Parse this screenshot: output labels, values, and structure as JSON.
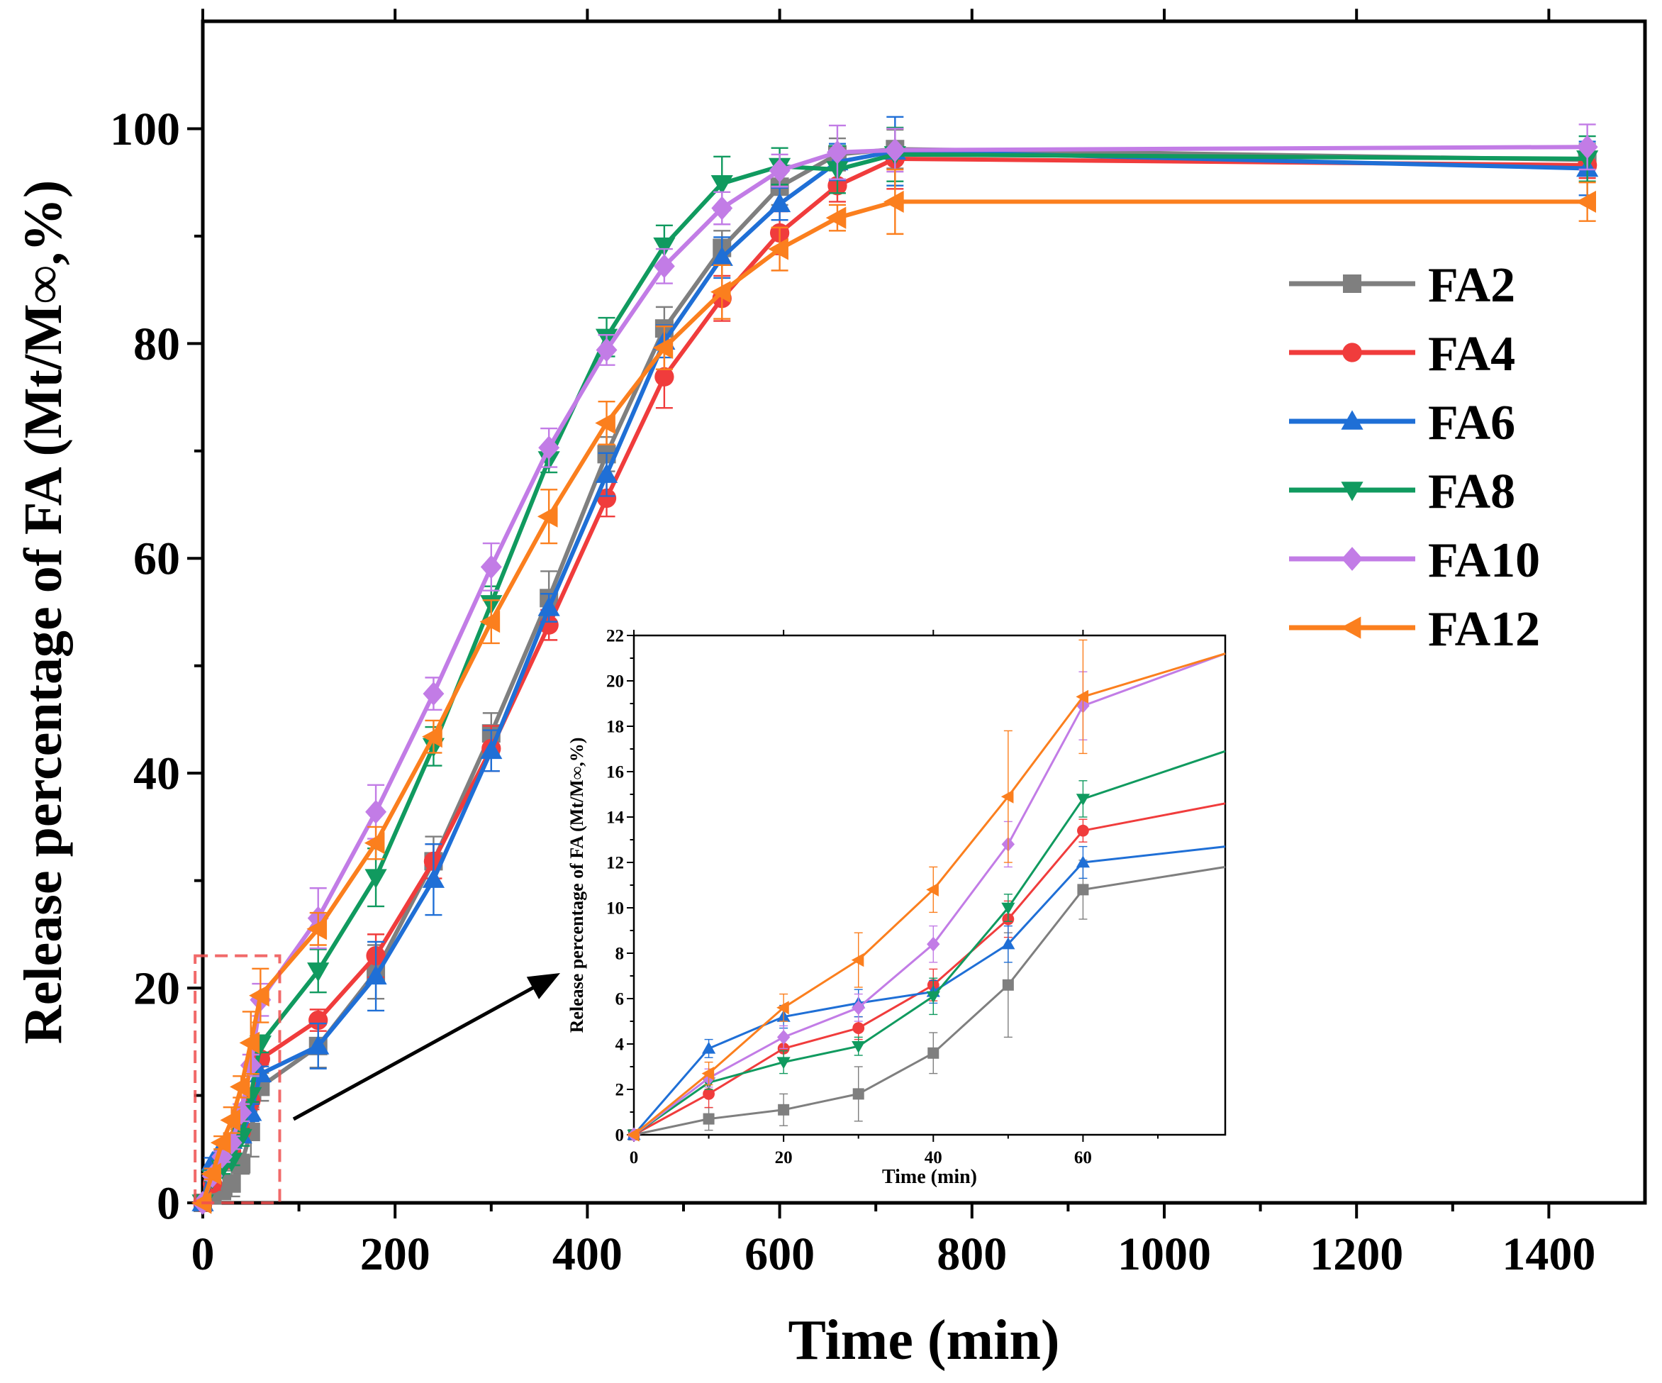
{
  "chart_data": [
    {
      "type": "line",
      "title": "",
      "xlabel": "Time (min)",
      "ylabel": "Release percentage of FA (Mt/M∞,%)",
      "xlim": [
        0,
        1500
      ],
      "ylim": [
        0,
        110
      ],
      "x_ticks": [
        0,
        200,
        400,
        600,
        800,
        1000,
        1200,
        1400
      ],
      "y_ticks": [
        0,
        20,
        40,
        60,
        80,
        100
      ],
      "x_tick_labels": [
        "0",
        "200",
        "400",
        "600",
        "800",
        "1000",
        "1200",
        "1400"
      ],
      "y_tick_labels": [
        "0",
        "20",
        "40",
        "60",
        "80",
        "100"
      ],
      "legend_position": "right",
      "series": [
        {
          "name": "FA2",
          "color": "#7f7f7f",
          "marker": "square",
          "x": [
            0,
            10,
            20,
            30,
            40,
            50,
            60,
            120,
            180,
            240,
            300,
            360,
            420,
            480,
            540,
            600,
            660,
            720,
            1440
          ],
          "y": [
            0,
            0.7,
            1.1,
            1.8,
            3.6,
            6.6,
            10.8,
            14.6,
            21.5,
            31.8,
            43.7,
            56.3,
            69.7,
            81.4,
            88.9,
            94.6,
            97.6,
            98.1,
            97.1
          ],
          "err": [
            0,
            0.5,
            0.7,
            1.2,
            0.9,
            2.3,
            1.3,
            2.0,
            2.5,
            2.3,
            1.9,
            2.5,
            1.6,
            2.0,
            1.6,
            1.7,
            1.5,
            1.8,
            1.5
          ]
        },
        {
          "name": "FA4",
          "color": "#f03c3c",
          "marker": "circle",
          "x": [
            0,
            10,
            20,
            30,
            40,
            50,
            60,
            120,
            180,
            240,
            300,
            360,
            420,
            480,
            540,
            600,
            660,
            720,
            1440
          ],
          "y": [
            0,
            1.8,
            3.8,
            4.7,
            6.6,
            9.5,
            13.4,
            17.0,
            23.0,
            31.8,
            42.3,
            53.8,
            65.6,
            76.9,
            84.2,
            90.3,
            94.7,
            97.2,
            96.6
          ],
          "err": [
            0,
            0.6,
            0.6,
            0.5,
            0.7,
            0.8,
            0.5,
            1.0,
            2.0,
            1.6,
            2.1,
            1.4,
            1.7,
            2.9,
            2.1,
            2.0,
            1.5,
            2.8,
            1.2
          ]
        },
        {
          "name": "FA6",
          "color": "#1f6fd6",
          "marker": "triangle-up",
          "x": [
            0,
            10,
            20,
            30,
            40,
            50,
            60,
            120,
            180,
            240,
            300,
            360,
            420,
            480,
            540,
            600,
            660,
            720,
            1440
          ],
          "y": [
            0,
            3.8,
            5.2,
            5.8,
            6.3,
            8.4,
            12.0,
            14.6,
            21.1,
            30.1,
            42.1,
            55.4,
            67.8,
            80.2,
            88.0,
            93.0,
            96.9,
            97.9,
            96.3
          ],
          "err": [
            0,
            0.4,
            0.5,
            0.6,
            0.5,
            0.8,
            0.7,
            2.1,
            3.2,
            3.3,
            1.9,
            1.3,
            2.0,
            1.5,
            1.9,
            1.5,
            1.7,
            3.2,
            2.5
          ]
        },
        {
          "name": "FA8",
          "color": "#109a5f",
          "marker": "triangle-down",
          "x": [
            0,
            10,
            20,
            30,
            40,
            50,
            60,
            120,
            180,
            240,
            300,
            360,
            420,
            480,
            540,
            600,
            660,
            720,
            1440
          ],
          "y": [
            0,
            2.3,
            3.2,
            3.9,
            6.1,
            10.0,
            14.8,
            21.6,
            30.3,
            42.5,
            55.8,
            69.2,
            80.6,
            89.1,
            94.9,
            96.5,
            96.2,
            97.6,
            97.2
          ],
          "err": [
            0,
            0.3,
            0.5,
            0.4,
            0.8,
            0.6,
            0.8,
            2.0,
            2.7,
            1.8,
            1.6,
            1.2,
            1.8,
            1.9,
            2.5,
            1.7,
            2.2,
            2.5,
            2.1
          ]
        },
        {
          "name": "FA10",
          "color": "#c27ce6",
          "marker": "diamond",
          "x": [
            0,
            10,
            20,
            30,
            40,
            50,
            60,
            120,
            180,
            240,
            300,
            360,
            420,
            480,
            540,
            600,
            660,
            720,
            1440
          ],
          "y": [
            0,
            2.5,
            4.3,
            5.6,
            8.4,
            12.8,
            18.9,
            26.5,
            36.4,
            47.4,
            59.2,
            70.3,
            79.4,
            87.2,
            92.6,
            96.1,
            97.8,
            98.0,
            98.3
          ],
          "err": [
            0,
            0.4,
            0.5,
            0.6,
            0.8,
            1.0,
            1.5,
            2.8,
            2.5,
            1.5,
            2.2,
            1.8,
            1.4,
            1.6,
            1.5,
            1.5,
            2.5,
            2.0,
            2.1
          ]
        },
        {
          "name": "FA12",
          "color": "#fb7f1e",
          "marker": "triangle-left",
          "x": [
            0,
            10,
            20,
            30,
            40,
            50,
            60,
            120,
            180,
            240,
            300,
            360,
            420,
            480,
            540,
            600,
            660,
            720,
            1440
          ],
          "y": [
            0,
            2.7,
            5.6,
            7.7,
            10.8,
            14.9,
            19.3,
            25.5,
            33.5,
            43.4,
            54.1,
            63.9,
            72.6,
            79.6,
            84.8,
            88.8,
            91.7,
            93.2,
            93.2
          ],
          "err": [
            0,
            0.5,
            0.6,
            1.2,
            1.0,
            2.9,
            2.5,
            1.5,
            1.5,
            1.5,
            2.0,
            2.5,
            2.0,
            2.0,
            2.5,
            2.0,
            1.2,
            3.0,
            1.8
          ]
        }
      ]
    },
    {
      "type": "line",
      "title": "",
      "xlabel": "Time (min)",
      "ylabel": "Release percentage of FA (Mt/M∞,%)",
      "xlim": [
        0,
        79
      ],
      "ylim": [
        0,
        22
      ],
      "x_ticks": [
        0,
        20,
        40,
        60
      ],
      "y_ticks": [
        0,
        2,
        4,
        6,
        8,
        10,
        12,
        14,
        16,
        18,
        20,
        22
      ],
      "x_tick_labels": [
        "0",
        "20",
        "40",
        "60"
      ],
      "y_tick_labels": [
        "0",
        "2",
        "4",
        "6",
        "8",
        "10",
        "12",
        "14",
        "16",
        "18",
        "20",
        "22"
      ],
      "note": "inset zoom of the region t = 0-80 min, release 0-22%",
      "series": [
        {
          "name": "FA2",
          "color": "#7f7f7f",
          "marker": "square",
          "x": [
            0,
            10,
            20,
            30,
            40,
            50,
            60,
            79
          ],
          "y": [
            0,
            0.7,
            1.1,
            1.8,
            3.6,
            6.6,
            10.8,
            11.8
          ],
          "err": [
            0,
            0.5,
            0.7,
            1.2,
            0.9,
            2.3,
            1.3,
            0
          ]
        },
        {
          "name": "FA4",
          "color": "#f03c3c",
          "marker": "circle",
          "x": [
            0,
            10,
            20,
            30,
            40,
            50,
            60,
            79
          ],
          "y": [
            0,
            1.8,
            3.8,
            4.7,
            6.6,
            9.5,
            13.4,
            14.6
          ],
          "err": [
            0,
            0.6,
            0.6,
            0.5,
            0.7,
            0.8,
            0.5,
            0
          ]
        },
        {
          "name": "FA6",
          "color": "#1f6fd6",
          "marker": "triangle-up",
          "x": [
            0,
            10,
            20,
            30,
            40,
            50,
            60,
            79
          ],
          "y": [
            0,
            3.8,
            5.2,
            5.8,
            6.3,
            8.4,
            12.0,
            12.7
          ],
          "err": [
            0,
            0.4,
            0.5,
            0.6,
            0.5,
            0.8,
            0.7,
            0
          ]
        },
        {
          "name": "FA8",
          "color": "#109a5f",
          "marker": "triangle-down",
          "x": [
            0,
            10,
            20,
            30,
            40,
            50,
            60,
            79
          ],
          "y": [
            0,
            2.3,
            3.2,
            3.9,
            6.1,
            10.0,
            14.8,
            16.9
          ],
          "err": [
            0,
            0.3,
            0.5,
            0.4,
            0.8,
            0.6,
            0.8,
            0
          ]
        },
        {
          "name": "FA10",
          "color": "#c27ce6",
          "marker": "diamond",
          "x": [
            0,
            10,
            20,
            30,
            40,
            50,
            60,
            79
          ],
          "y": [
            0,
            2.5,
            4.3,
            5.6,
            8.4,
            12.8,
            18.9,
            21.2
          ],
          "err": [
            0,
            0.4,
            0.5,
            0.6,
            0.8,
            1.0,
            1.5,
            0
          ]
        },
        {
          "name": "FA12",
          "color": "#fb7f1e",
          "marker": "triangle-left",
          "x": [
            0,
            10,
            20,
            30,
            40,
            50,
            60,
            79
          ],
          "y": [
            0,
            2.7,
            5.6,
            7.7,
            10.8,
            14.9,
            19.3,
            21.2
          ],
          "err": [
            0,
            0.5,
            0.6,
            1.2,
            1.0,
            2.9,
            2.5,
            0
          ]
        }
      ]
    }
  ]
}
